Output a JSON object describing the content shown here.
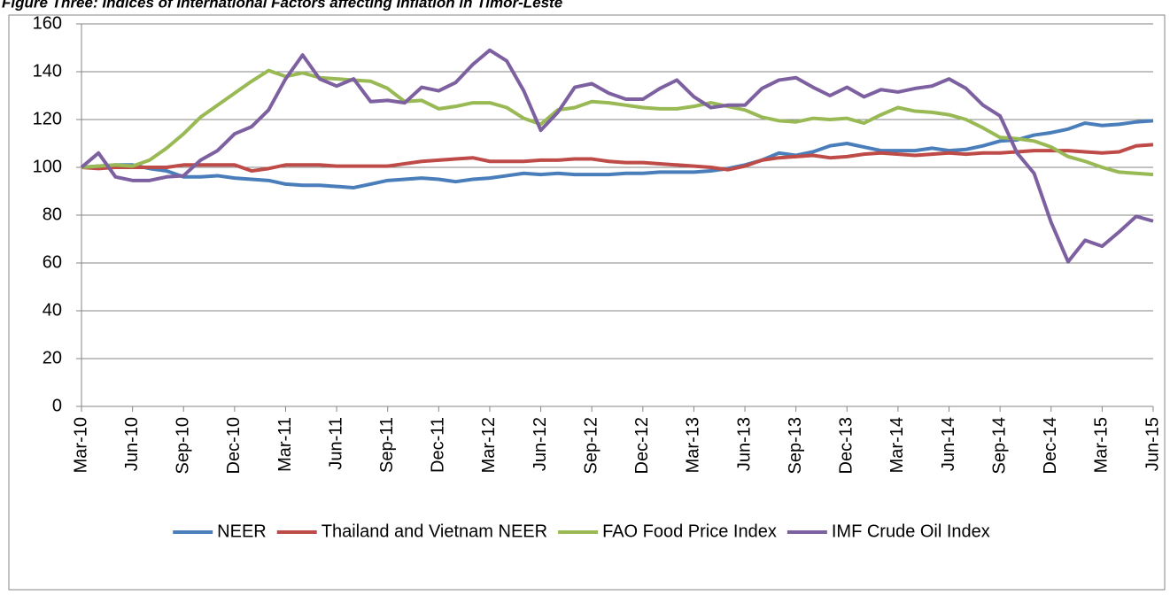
{
  "chart_data": {
    "type": "line",
    "title": "Figure Three: Indices of International Factors affecting Inflation in Timor-Leste",
    "categories": [
      "Mar-10",
      null,
      null,
      "Jun-10",
      null,
      null,
      "Sep-10",
      null,
      null,
      "Dec-10",
      null,
      null,
      "Mar-11",
      null,
      null,
      "Jun-11",
      null,
      null,
      "Sep-11",
      null,
      null,
      "Dec-11",
      null,
      null,
      "Mar-12",
      null,
      null,
      "Jun-12",
      null,
      null,
      "Sep-12",
      null,
      null,
      "Dec-12",
      null,
      null,
      "Mar-13",
      null,
      null,
      "Jun-13",
      null,
      null,
      "Sep-13",
      null,
      null,
      "Dec-13",
      null,
      null,
      "Mar-14",
      null,
      null,
      "Jun-14",
      null,
      null,
      "Sep-14",
      null,
      null,
      "Dec-14",
      null,
      null,
      "Mar-15",
      null,
      null,
      "Jun-15"
    ],
    "series": [
      {
        "name": "NEER",
        "color": "#4a7ebb",
        "values": [
          100,
          100.5,
          101,
          101,
          99.5,
          98.5,
          96,
          96,
          96.5,
          95.5,
          95,
          94.5,
          93,
          92.5,
          92.5,
          92,
          91.5,
          93,
          94.5,
          95,
          95.5,
          95,
          94,
          95,
          95.5,
          96.5,
          97.5,
          97,
          97.5,
          97,
          97,
          97,
          97.5,
          97.5,
          98,
          98,
          98,
          98.5,
          99.5,
          101,
          103,
          106,
          105,
          106.5,
          109,
          110,
          108.5,
          107,
          107,
          107,
          108,
          107,
          107.5,
          109,
          111,
          111.5,
          113.5,
          114.5,
          116,
          118.5,
          117.5,
          118,
          119,
          119.5
        ]
      },
      {
        "name": "Thailand and Vietnam NEER",
        "color": "#be4b48",
        "values": [
          100,
          99.5,
          100,
          100,
          100,
          100,
          101,
          101,
          101,
          101,
          98.5,
          99.5,
          101,
          101,
          101,
          100.5,
          100.5,
          100.5,
          100.5,
          101.5,
          102.5,
          103,
          103.5,
          104,
          102.5,
          102.5,
          102.5,
          103,
          103,
          103.5,
          103.5,
          102.5,
          102,
          102,
          101.5,
          101,
          100.5,
          100,
          99,
          100.5,
          103,
          104,
          104.5,
          105,
          104,
          104.5,
          105.5,
          106,
          105.5,
          105,
          105.5,
          106,
          105.5,
          106,
          106,
          106.5,
          107,
          107,
          107,
          106.5,
          106,
          106.5,
          109,
          109.5
        ]
      },
      {
        "name": "FAO Food Price Index",
        "color": "#98b954",
        "values": [
          100,
          100.5,
          101,
          100.5,
          103,
          108,
          114,
          121,
          126,
          131,
          136,
          140.5,
          138,
          139.5,
          137.5,
          137,
          136.5,
          136,
          133,
          127.5,
          128,
          124.5,
          125.5,
          127,
          127,
          125,
          120.5,
          118,
          124,
          125,
          127.5,
          127,
          126,
          125,
          124.5,
          124.5,
          125.5,
          127,
          125.5,
          124,
          121,
          119.5,
          119,
          120.5,
          120,
          120.5,
          118.5,
          122,
          125,
          123.5,
          123,
          122,
          120,
          116.5,
          112.5,
          112,
          111,
          108.5,
          104.5,
          102.5,
          100,
          98,
          97.5,
          97
        ]
      },
      {
        "name": "IMF Crude Oil Index",
        "color": "#7d60a0",
        "values": [
          100,
          106,
          96,
          94.5,
          94.5,
          96,
          96.5,
          103,
          107,
          114,
          117,
          124,
          137,
          147,
          137,
          134,
          137,
          127.5,
          128,
          127,
          133.5,
          132,
          135.5,
          143,
          149,
          144.5,
          132,
          115.5,
          123,
          133.5,
          135,
          131,
          128.5,
          128.5,
          133,
          136.5,
          129.5,
          125,
          126,
          126,
          133,
          136.5,
          137.5,
          133.5,
          130,
          133.5,
          129.5,
          132.5,
          131.5,
          133,
          134,
          137,
          133,
          126,
          121.5,
          106,
          97.5,
          77,
          60.5,
          69.5,
          67,
          73,
          79.5,
          77.5
        ]
      }
    ],
    "ylim": [
      0,
      160
    ],
    "yticks": [
      0,
      20,
      40,
      60,
      80,
      100,
      120,
      140,
      160
    ],
    "grid": true,
    "legend": "bottom"
  }
}
